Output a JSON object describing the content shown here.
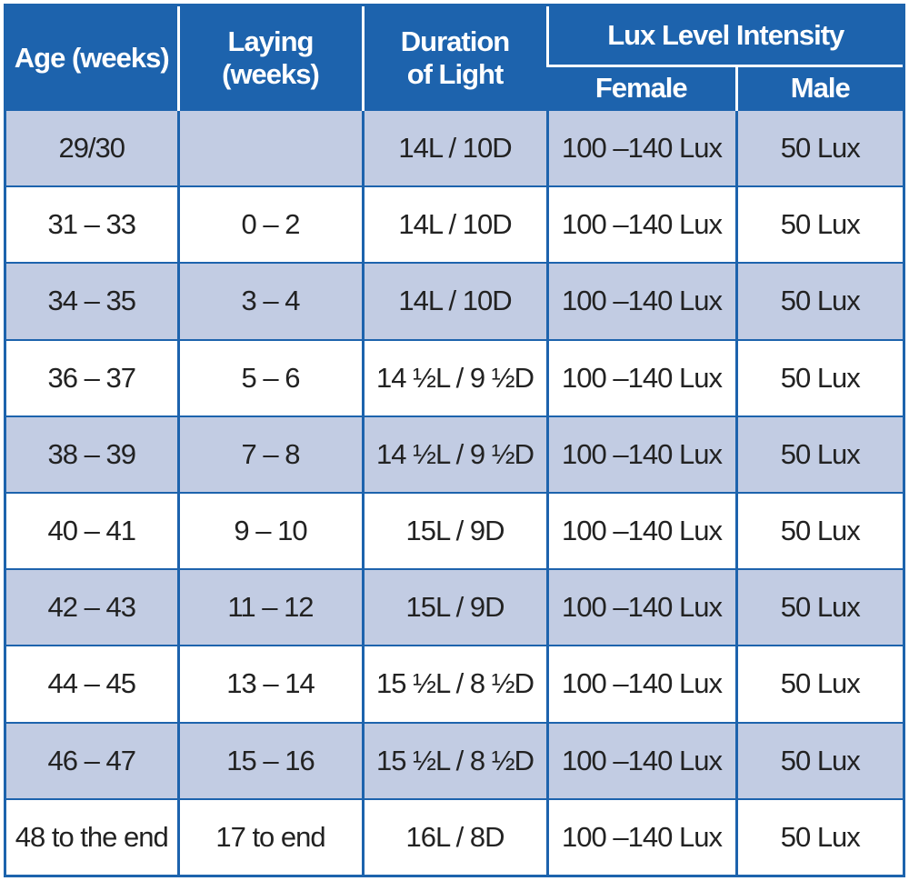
{
  "headers": {
    "age": "Age (weeks)",
    "laying": "Laying (weeks)",
    "duration": "Duration of Light",
    "lux_group": "Lux Level Intensity",
    "female": "Female",
    "male": "Male"
  },
  "row_colors": {
    "shaded": "#c2cce3",
    "plain": "#ffffff",
    "header": "#1d63ad"
  },
  "rows": [
    {
      "age": "29/30",
      "laying": "",
      "duration": "14L / 10D",
      "female": "100 –140 Lux",
      "male": "50 Lux"
    },
    {
      "age": "31 – 33",
      "laying": "0 – 2",
      "duration": "14L / 10D",
      "female": "100 –140 Lux",
      "male": "50 Lux"
    },
    {
      "age": "34 – 35",
      "laying": "3 – 4",
      "duration": "14L / 10D",
      "female": "100 –140 Lux",
      "male": "50 Lux"
    },
    {
      "age": "36 – 37",
      "laying": "5 – 6",
      "duration": "14 ½L / 9 ½D",
      "female": "100 –140 Lux",
      "male": "50 Lux"
    },
    {
      "age": "38 – 39",
      "laying": "7 – 8",
      "duration": "14 ½L / 9 ½D",
      "female": "100 –140 Lux",
      "male": "50 Lux"
    },
    {
      "age": "40 – 41",
      "laying": "9 – 10",
      "duration": "15L / 9D",
      "female": "100 –140 Lux",
      "male": "50 Lux"
    },
    {
      "age": "42 – 43",
      "laying": "11 – 12",
      "duration": "15L / 9D",
      "female": "100 –140 Lux",
      "male": "50 Lux"
    },
    {
      "age": "44 – 45",
      "laying": "13 – 14",
      "duration": "15 ½L / 8 ½D",
      "female": "100 –140 Lux",
      "male": "50 Lux"
    },
    {
      "age": "46 – 47",
      "laying": "15 – 16",
      "duration": "15 ½L / 8 ½D",
      "female": "100 –140 Lux",
      "male": "50 Lux"
    },
    {
      "age": "48 to the end",
      "laying": "17 to end",
      "duration": "16L / 8D",
      "female": "100 –140 Lux",
      "male": "50 Lux"
    }
  ]
}
